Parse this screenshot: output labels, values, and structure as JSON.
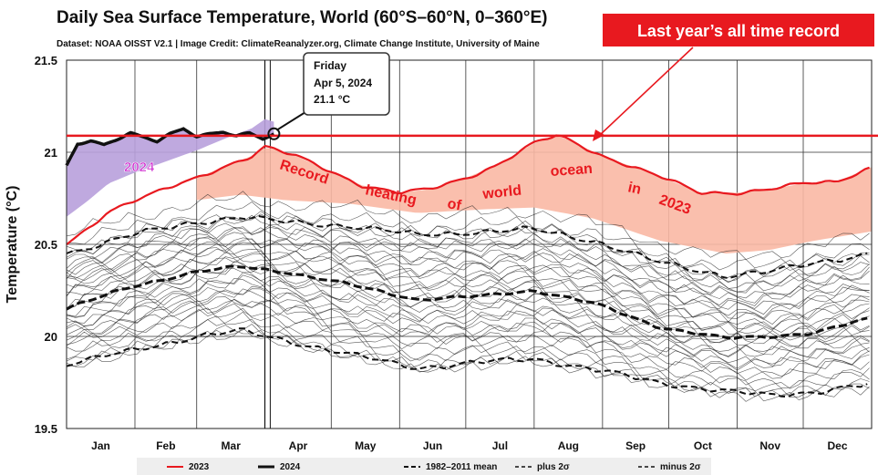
{
  "header": {
    "title": "Daily Sea Surface Temperature, World (60°S–60°N, 0–360°E)",
    "subtitle": "Dataset: NOAA OISST V2.1 | Image Credit: ClimateReanalyzer.org, Climate Change Institute, University of Maine",
    "banner": "Last  year’s all time  record"
  },
  "tooltip": {
    "day": "Friday",
    "date": "Apr 5, 2024",
    "value_text": "21.1 °C",
    "x": 95,
    "y": 21.1
  },
  "annotations": {
    "label_2024": "2024",
    "record_words": [
      "Record",
      "heating",
      "of",
      "world",
      "ocean",
      "in",
      "2023"
    ]
  },
  "colors": {
    "series_2023": "#e8191f",
    "series_2024": "#111111",
    "fill_2024": "#b8a0dc",
    "fill_2023": "#f9b8a4",
    "banner_bg": "#e8191f",
    "record_line": "#e8191f"
  },
  "chart_data": {
    "type": "line",
    "title": "Daily Sea Surface Temperature, World (60°S–60°N, 0–360°E)",
    "xlabel": "",
    "ylabel": "Temperature (°C)",
    "ylim": [
      19.5,
      21.5
    ],
    "xlim": [
      1,
      366
    ],
    "yticks": [
      19.5,
      20,
      20.5,
      21,
      21.5
    ],
    "ytick_labels": [
      "19.5",
      "20",
      "20.5",
      "21",
      "21.5"
    ],
    "months": [
      "Jan",
      "Feb",
      "Mar",
      "Apr",
      "May",
      "Jun",
      "Jul",
      "Aug",
      "Sep",
      "Oct",
      "Nov",
      "Dec"
    ],
    "record_line_value": 21.09,
    "grid": true,
    "legend_position": "bottom",
    "legend": [
      {
        "label": "2023",
        "style": "red-solid"
      },
      {
        "label": "2024",
        "style": "black-solid-thick"
      },
      {
        "label": "1982–2011 mean",
        "style": "black-dashed"
      },
      {
        "label": "plus 2σ",
        "style": "black-dashed-thin"
      },
      {
        "label": "minus 2σ",
        "style": "black-dashed-thin"
      }
    ],
    "series": [
      {
        "name": "2023",
        "x": [
          1,
          10,
          20,
          32,
          46,
          60,
          74,
          85,
          91,
          105,
          120,
          135,
          152,
          166,
          182,
          196,
          213,
          223,
          228,
          244,
          258,
          274,
          288,
          305,
          320,
          335,
          350,
          366
        ],
        "values": [
          20.5,
          20.58,
          20.68,
          20.74,
          20.8,
          20.86,
          20.93,
          20.98,
          21.03,
          20.98,
          20.9,
          20.82,
          20.78,
          20.8,
          20.86,
          20.93,
          21.05,
          21.09,
          21.07,
          20.98,
          20.92,
          20.85,
          20.78,
          20.78,
          20.8,
          20.83,
          20.84,
          20.92
        ]
      },
      {
        "name": "2024",
        "x": [
          1,
          6,
          12,
          18,
          24,
          30,
          36,
          42,
          48,
          54,
          60,
          66,
          72,
          78,
          84,
          90,
          95
        ],
        "values": [
          20.93,
          21.05,
          21.06,
          21.04,
          21.07,
          21.1,
          21.08,
          21.06,
          21.1,
          21.13,
          21.09,
          21.1,
          21.11,
          21.09,
          21.1,
          21.07,
          21.1
        ]
      },
      {
        "name": "1982–2011 mean",
        "x": [
          1,
          30,
          60,
          80,
          100,
          130,
          160,
          190,
          213,
          240,
          270,
          300,
          320,
          340,
          366
        ],
        "values": [
          20.15,
          20.27,
          20.35,
          20.38,
          20.35,
          20.28,
          20.2,
          20.22,
          20.25,
          20.18,
          20.05,
          19.99,
          20.0,
          20.02,
          20.1
        ]
      },
      {
        "name": "plus 2σ",
        "x": [
          1,
          30,
          60,
          80,
          100,
          130,
          160,
          190,
          213,
          240,
          270,
          300,
          320,
          340,
          366
        ],
        "values": [
          20.45,
          20.55,
          20.62,
          20.65,
          20.62,
          20.6,
          20.55,
          20.57,
          20.58,
          20.52,
          20.4,
          20.33,
          20.35,
          20.4,
          20.45
        ]
      },
      {
        "name": "minus 2σ",
        "x": [
          1,
          30,
          60,
          80,
          100,
          130,
          160,
          190,
          213,
          240,
          270,
          300,
          320,
          340,
          366
        ],
        "values": [
          19.85,
          19.92,
          20.0,
          20.03,
          19.98,
          19.9,
          19.83,
          19.86,
          19.88,
          19.82,
          19.75,
          19.7,
          19.68,
          19.7,
          19.74
        ]
      }
    ]
  }
}
